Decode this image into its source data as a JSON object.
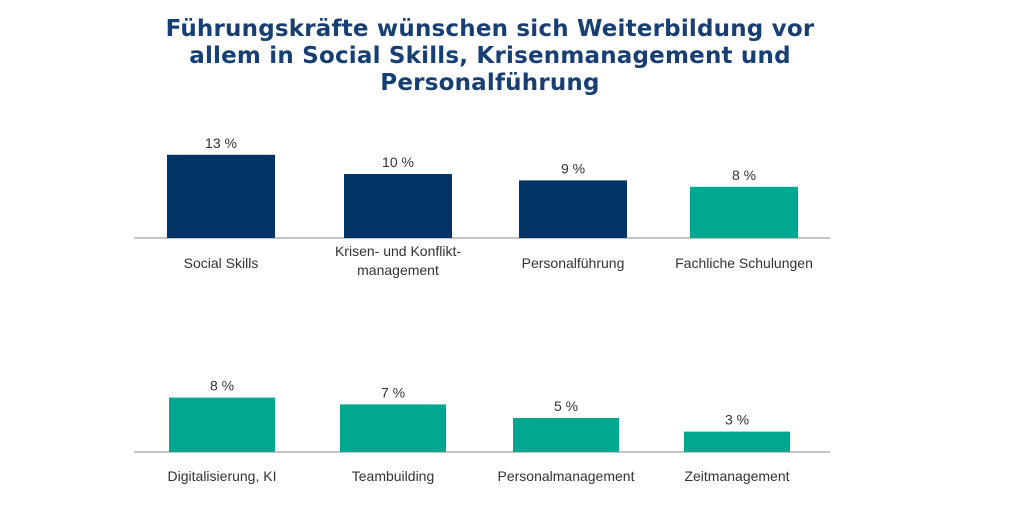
{
  "title": "Führungskräfte wünschen sich Weiterbildung vor\nallem in Social Skills, Krisenmanagement und\nPersonalführung",
  "colors": {
    "navy": "#003366",
    "teal": "#00a88f",
    "title": "#173f73"
  },
  "chart_data": [
    {
      "type": "bar",
      "categories": [
        "Social Skills",
        "Krisen- und Konflikt-\nmanagement",
        "Personalführung",
        "Fachliche Schulungen"
      ],
      "values": [
        13,
        10,
        9,
        8
      ],
      "value_labels": [
        "13 %",
        "10 %",
        "9 %",
        "8 %"
      ],
      "colors": [
        "#003366",
        "#003366",
        "#003366",
        "#00a88f"
      ],
      "title": "",
      "xlabel": "",
      "ylabel": "",
      "ylim": [
        0,
        13
      ]
    },
    {
      "type": "bar",
      "categories": [
        "Digitalisierung, KI",
        "Teambuilding",
        "Personalmanagement",
        "Zeitmanagement"
      ],
      "values": [
        8,
        7,
        5,
        3
      ],
      "value_labels": [
        "8 %",
        "7 %",
        "5 %",
        "3 %"
      ],
      "colors": [
        "#00a88f",
        "#00a88f",
        "#00a88f",
        "#00a88f"
      ],
      "title": "",
      "xlabel": "",
      "ylabel": "",
      "ylim": [
        0,
        13
      ]
    }
  ]
}
